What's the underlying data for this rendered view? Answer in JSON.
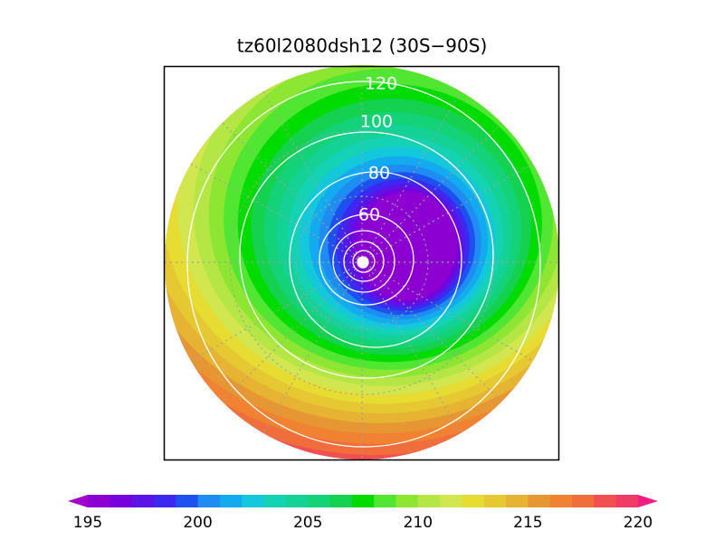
{
  "title": "tz60l2080dsh12 (30S−90S)",
  "contour_labels": [
    120,
    100,
    80,
    60
  ],
  "colorbar": {
    "ticks": [
      195,
      200,
      205,
      210,
      215,
      220
    ],
    "colors": [
      "#a000c8",
      "#8c00d2",
      "#7800dc",
      "#5a14e6",
      "#3c28f0",
      "#1e50f0",
      "#1e8cf0",
      "#14aaf0",
      "#14c8dc",
      "#14d2b4",
      "#14d296",
      "#14d278",
      "#14d250",
      "#00dc00",
      "#50e632",
      "#8ce632",
      "#b4e646",
      "#d2e650",
      "#e6dc32",
      "#e6c832",
      "#e6b432",
      "#e69632",
      "#f08232",
      "#f06e3c",
      "#f05050",
      "#f03c64",
      "#f01e82"
    ]
  }
}
